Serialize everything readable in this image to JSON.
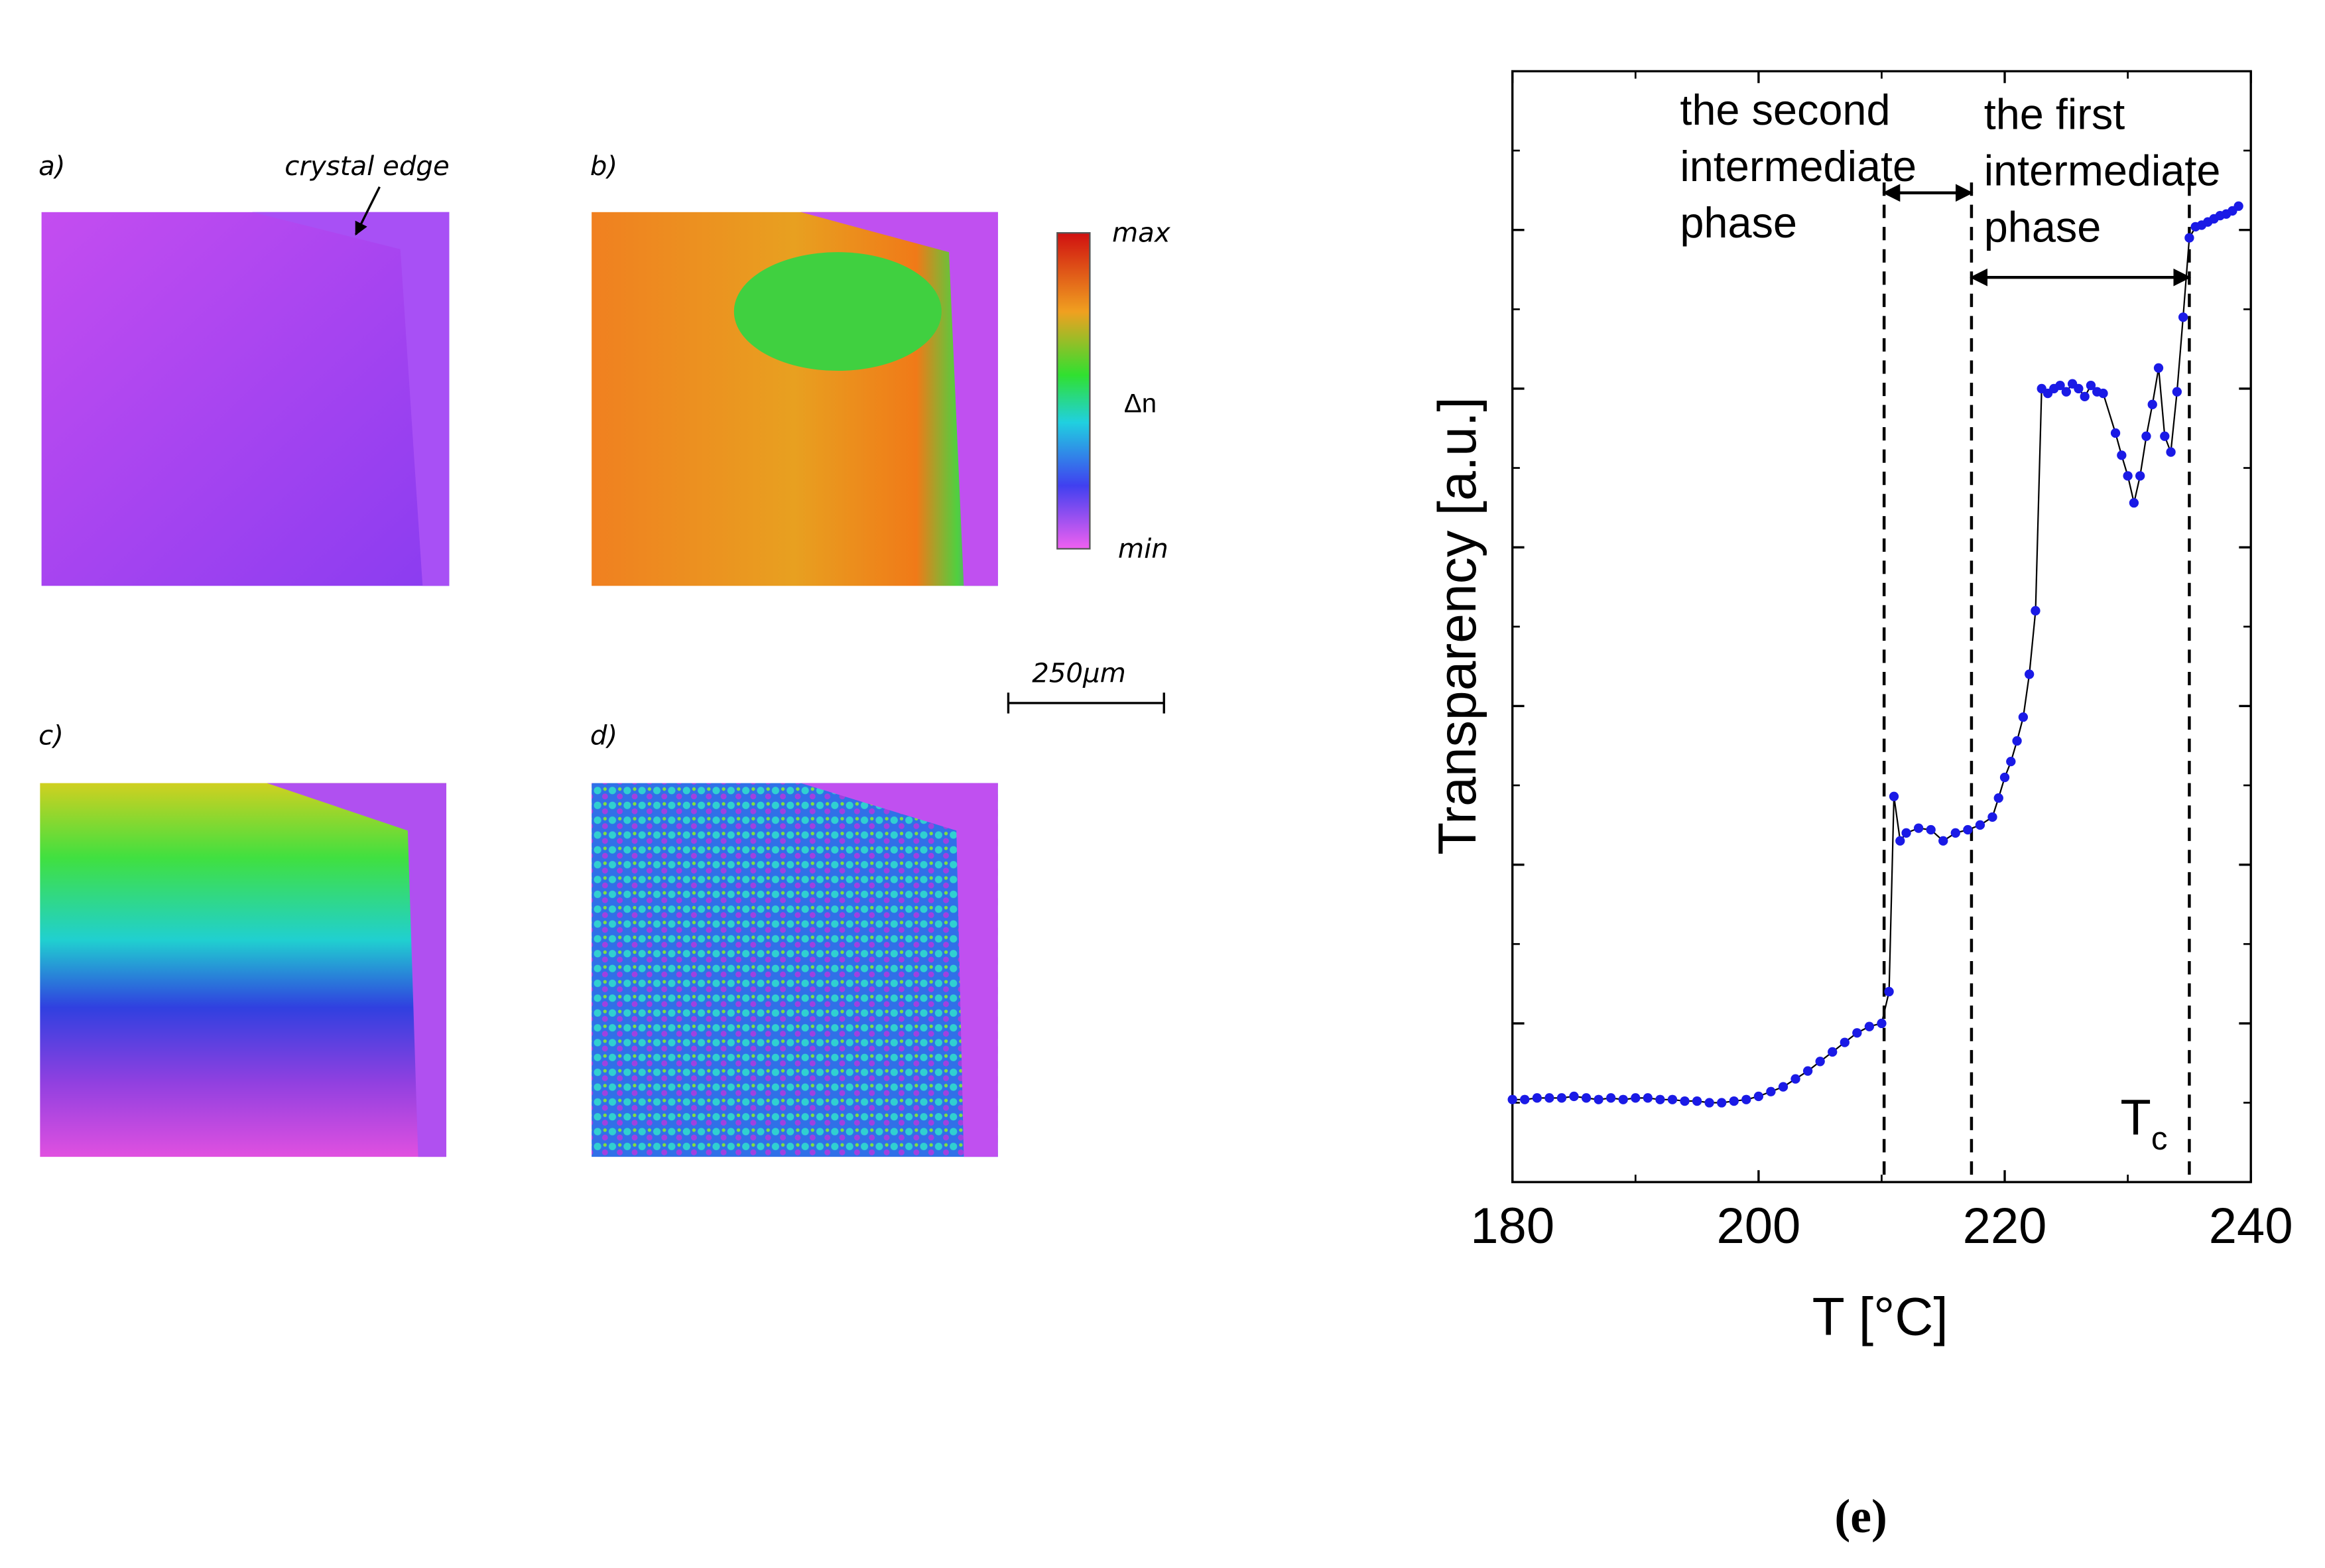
{
  "panels": {
    "labels": [
      "a)",
      "b)",
      "c)",
      "d)"
    ],
    "crystal_edge": "crystal edge",
    "colorbar": {
      "max": "max",
      "quantity": "Δn",
      "min": "min"
    },
    "scale_bar": "250μm"
  },
  "chart_data": {
    "type": "scatter",
    "caption": "(e)",
    "x_label": "T [°C]",
    "y_label": "Transparency [a.u.]",
    "x": [
      180,
      181,
      182,
      183,
      184,
      185,
      186,
      187,
      188,
      189,
      190,
      191,
      192,
      193,
      194,
      195,
      196,
      197,
      198,
      199,
      200,
      201,
      202,
      203,
      204,
      205,
      206,
      207,
      208,
      209,
      210,
      210.6,
      211,
      211.5,
      212,
      213,
      214,
      215,
      216,
      217,
      218,
      219,
      219.5,
      220,
      220.5,
      221,
      221.5,
      222,
      222.5,
      223,
      223.5,
      224,
      224.5,
      225,
      225.5,
      226,
      226.5,
      227,
      227.5,
      228,
      229,
      229.5,
      230,
      230.5,
      231,
      231.5,
      232,
      232.5,
      233,
      233.5,
      234,
      234.5,
      235,
      235.5,
      236,
      236.5,
      237,
      237.5,
      238,
      238.5,
      239
    ],
    "series": [
      {
        "color": "#1a1ae6",
        "values": [
          0.52,
          0.52,
          0.53,
          0.53,
          0.53,
          0.54,
          0.53,
          0.52,
          0.53,
          0.52,
          0.53,
          0.53,
          0.52,
          0.52,
          0.51,
          0.51,
          0.5,
          0.5,
          0.51,
          0.52,
          0.54,
          0.57,
          0.6,
          0.65,
          0.7,
          0.76,
          0.82,
          0.88,
          0.94,
          0.98,
          1.0,
          1.2,
          2.43,
          2.15,
          2.2,
          2.23,
          2.22,
          2.15,
          2.2,
          2.22,
          2.25,
          2.3,
          2.42,
          2.55,
          2.65,
          2.78,
          2.93,
          3.2,
          3.6,
          5.0,
          4.97,
          5.0,
          5.02,
          4.98,
          5.03,
          5.0,
          4.95,
          5.02,
          4.98,
          4.97,
          4.72,
          4.58,
          4.45,
          4.28,
          4.45,
          4.7,
          4.9,
          5.13,
          4.7,
          4.6,
          4.98,
          5.45,
          5.95,
          6.02,
          6.03,
          6.05,
          6.07,
          6.09,
          6.1,
          6.12,
          6.15
        ]
      }
    ],
    "xlim": [
      180,
      240
    ],
    "xticks": [
      180,
      200,
      220,
      240
    ],
    "xminor": [
      190,
      210,
      230
    ],
    "ylim": [
      0,
      7
    ],
    "yticks": [
      1,
      2,
      3,
      4,
      5,
      6
    ],
    "yminor": [
      0.5,
      1.5,
      2.5,
      3.5,
      4.5,
      5.5,
      6.5
    ],
    "vlines": [
      210.2,
      217.3,
      235
    ],
    "annotations": [
      {
        "lines": [
          "the second",
          "intermediate",
          "phase"
        ]
      },
      {
        "lines": [
          "the first",
          "intermediate",
          "phase"
        ]
      },
      {
        "text": "T",
        "sub": "c"
      }
    ]
  }
}
